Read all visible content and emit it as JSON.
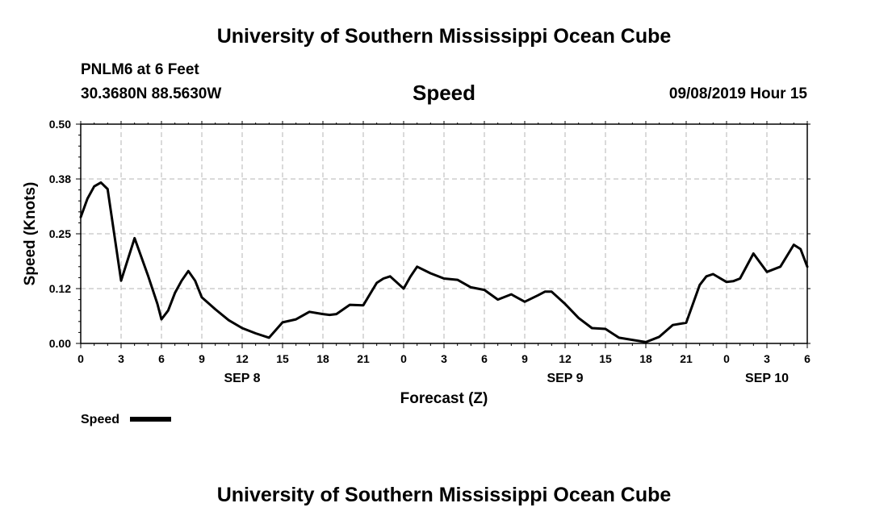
{
  "header": {
    "title": "University of Southern Mississippi Ocean Cube",
    "station": "PNLM6 at 6 Feet",
    "coords": "30.3680N 88.5630W",
    "chart_title": "Speed",
    "timestamp": "09/08/2019 Hour 15"
  },
  "footer": {
    "title": "University of Southern Mississippi Ocean Cube"
  },
  "colors": {
    "line": "#000000",
    "grid": "#b4b4b4",
    "background": "#ffffff"
  },
  "chart_data": {
    "type": "line",
    "title": "Speed",
    "xlabel": "Forecast (Z)",
    "ylabel": "Speed (Knots)",
    "xlim": [
      0,
      54
    ],
    "ylim": [
      0,
      0.5
    ],
    "grid": true,
    "legend_position": "bottom-left",
    "x_ticks": [
      0,
      3,
      6,
      9,
      12,
      15,
      18,
      21,
      24,
      27,
      30,
      33,
      36,
      39,
      42,
      45,
      48,
      51,
      54
    ],
    "x_tick_labels": [
      "0",
      "3",
      "6",
      "9",
      "12",
      "15",
      "18",
      "21",
      "0",
      "3",
      "6",
      "9",
      "12",
      "15",
      "18",
      "21",
      "0",
      "3",
      "6"
    ],
    "y_ticks": [
      0,
      0.125,
      0.25,
      0.375,
      0.5
    ],
    "y_tick_labels": [
      "0.00",
      "0.12",
      "0.25",
      "0.38",
      "0.50"
    ],
    "date_labels": [
      {
        "x": 12,
        "label": "SEP 8"
      },
      {
        "x": 36,
        "label": "SEP 9"
      },
      {
        "x": 51,
        "label": "SEP 10"
      }
    ],
    "series": [
      {
        "name": "Speed",
        "x": [
          0,
          0.5,
          1,
          1.5,
          2,
          3,
          4,
          5,
          5.7,
          6,
          6.5,
          7,
          7.5,
          8,
          8.5,
          9,
          10,
          11,
          12,
          13,
          14,
          15,
          16,
          17,
          18,
          18.5,
          19,
          20,
          21,
          22,
          22.5,
          23,
          24,
          24.5,
          25,
          26,
          27,
          28,
          29,
          30,
          31,
          32,
          33,
          34,
          34.5,
          35,
          36,
          37,
          38,
          39,
          40,
          41,
          42,
          43,
          44,
          45,
          46,
          46.5,
          47,
          48,
          48.5,
          49,
          50,
          51,
          52,
          53,
          53.5,
          54
        ],
        "values": [
          0.288,
          0.33,
          0.358,
          0.367,
          0.352,
          0.143,
          0.24,
          0.155,
          0.09,
          0.055,
          0.075,
          0.115,
          0.143,
          0.165,
          0.143,
          0.105,
          0.078,
          0.053,
          0.035,
          0.023,
          0.013,
          0.048,
          0.055,
          0.072,
          0.067,
          0.065,
          0.067,
          0.088,
          0.087,
          0.138,
          0.148,
          0.153,
          0.125,
          0.152,
          0.175,
          0.16,
          0.148,
          0.145,
          0.128,
          0.122,
          0.1,
          0.112,
          0.095,
          0.11,
          0.118,
          0.118,
          0.09,
          0.058,
          0.035,
          0.033,
          0.013,
          0.008,
          0.003,
          0.015,
          0.042,
          0.047,
          0.133,
          0.153,
          0.158,
          0.14,
          0.142,
          0.148,
          0.205,
          0.163,
          0.175,
          0.225,
          0.215,
          0.175
        ]
      }
    ]
  }
}
